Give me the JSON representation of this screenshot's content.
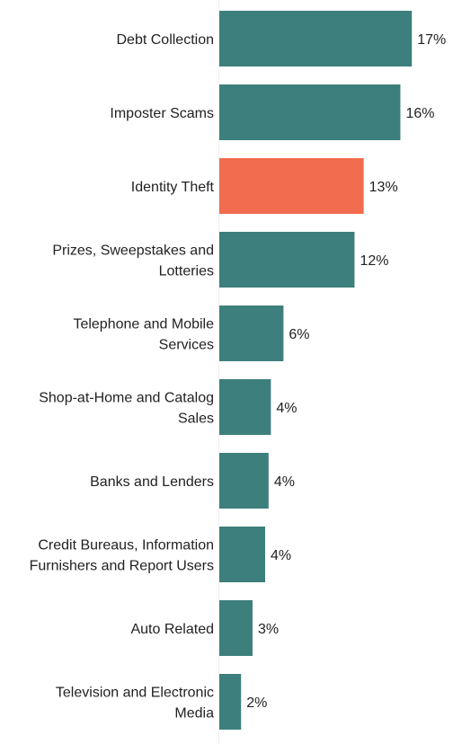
{
  "chart_data": {
    "type": "bar",
    "orientation": "horizontal",
    "categories": [
      "Debt Collection",
      "Imposter Scams",
      "Identity Theft",
      "Prizes, Sweepstakes and Lotteries",
      "Telephone and Mobile Services",
      "Shop-at-Home and Catalog Sales",
      "Banks and Lenders",
      "Credit Bureaus, Information Furnishers and Report Users",
      "Auto Related",
      "Television and Electronic Media"
    ],
    "category_lines": [
      [
        "Debt Collection"
      ],
      [
        "Imposter Scams"
      ],
      [
        "Identity Theft"
      ],
      [
        "Prizes, Sweepstakes and",
        "Lotteries"
      ],
      [
        "Telephone and Mobile",
        "Services"
      ],
      [
        "Shop-at-Home and Catalog",
        "Sales"
      ],
      [
        "Banks and Lenders"
      ],
      [
        "Credit Bureaus, Information",
        "Furnishers and Report Users"
      ],
      [
        "Auto Related"
      ],
      [
        "Television and Electronic",
        "Media"
      ]
    ],
    "values": [
      17,
      16,
      13,
      12,
      6,
      4,
      4,
      4,
      3,
      2
    ],
    "value_labels": [
      "17%",
      "16%",
      "13%",
      "12%",
      "6%",
      "4%",
      "4%",
      "4%",
      "3%",
      "2%"
    ],
    "precise_values": [
      16.8,
      15.8,
      12.6,
      11.8,
      5.6,
      4.5,
      4.3,
      4.0,
      2.9,
      1.9
    ],
    "highlight_index": 2,
    "colors": {
      "default": "#3d7f7c",
      "highlight": "#f26c4f",
      "axis": "#eeeeee"
    },
    "xlim": [
      0,
      20
    ],
    "grid": false,
    "legend": "none",
    "title": "",
    "xlabel": "",
    "ylabel": ""
  }
}
